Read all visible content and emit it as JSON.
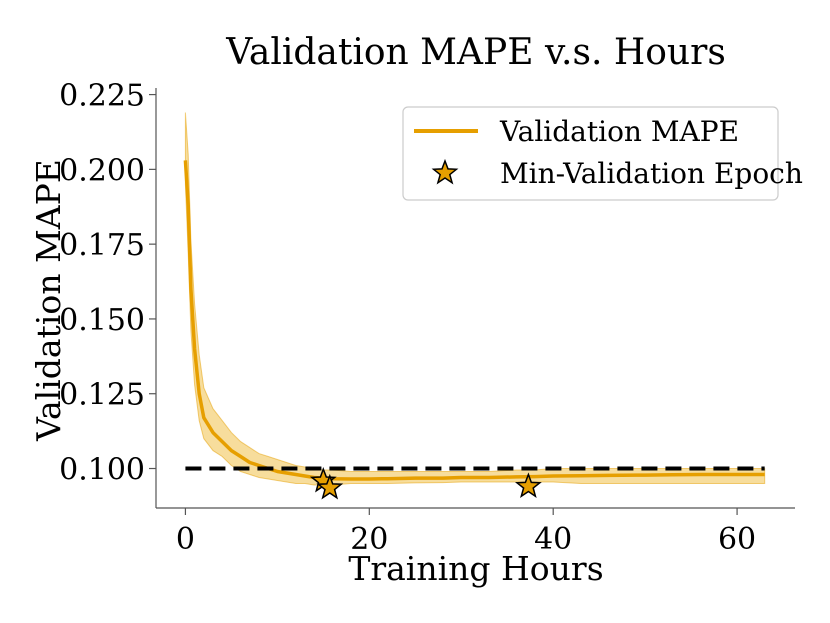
{
  "chart_data": {
    "type": "line",
    "title": "Validation MAPE v.s. Hours",
    "xlabel": "Training Hours",
    "ylabel": "Validation MAPE",
    "xlim": [
      -3.2,
      66.3
    ],
    "ylim": [
      0.0868,
      0.2272
    ],
    "xticks": [
      0,
      20,
      40,
      60
    ],
    "xtick_labels": [
      "0",
      "20",
      "40",
      "60"
    ],
    "yticks": [
      0.1,
      0.125,
      0.15,
      0.175,
      0.2,
      0.225
    ],
    "ytick_labels": [
      "0.100",
      "0.125",
      "0.150",
      "0.175",
      "0.200",
      "0.225"
    ],
    "grid": false,
    "legend_position": "top-right",
    "colors": {
      "series": "#E69F00",
      "band": "#F2C75A",
      "reference": "#000000",
      "star_edge": "#000000"
    },
    "series": [
      {
        "name": "Validation MAPE",
        "x": [
          0,
          0.3,
          0.6,
          1,
          1.5,
          2,
          3,
          4,
          5,
          6,
          7,
          8,
          9,
          10,
          11,
          12,
          13,
          14,
          15,
          16,
          18,
          20,
          22,
          25,
          28,
          30,
          33,
          36,
          38,
          40,
          43,
          46,
          50,
          53,
          56,
          60,
          63
        ],
        "mean": [
          0.203,
          0.188,
          0.16,
          0.14,
          0.125,
          0.117,
          0.112,
          0.109,
          0.106,
          0.104,
          0.102,
          0.101,
          0.1,
          0.099,
          0.0985,
          0.098,
          0.0975,
          0.097,
          0.0968,
          0.0966,
          0.0965,
          0.0965,
          0.0966,
          0.0968,
          0.0968,
          0.097,
          0.097,
          0.0972,
          0.0973,
          0.0975,
          0.0976,
          0.0977,
          0.0978,
          0.0979,
          0.098,
          0.098,
          0.098
        ],
        "lower": [
          0.195,
          0.172,
          0.146,
          0.128,
          0.116,
          0.11,
          0.106,
          0.104,
          0.101,
          0.099,
          0.098,
          0.097,
          0.0965,
          0.096,
          0.0955,
          0.095,
          0.095,
          0.0945,
          0.0945,
          0.0945,
          0.095,
          0.095,
          0.095,
          0.0952,
          0.0953,
          0.0955,
          0.0955,
          0.0955,
          0.0955,
          0.0955,
          0.095,
          0.095,
          0.095,
          0.095,
          0.095,
          0.095,
          0.095
        ],
        "upper": [
          0.219,
          0.205,
          0.176,
          0.155,
          0.138,
          0.127,
          0.12,
          0.116,
          0.112,
          0.109,
          0.107,
          0.105,
          0.104,
          0.103,
          0.102,
          0.101,
          0.1005,
          0.1,
          0.0995,
          0.0995,
          0.099,
          0.099,
          0.099,
          0.099,
          0.099,
          0.099,
          0.099,
          0.0995,
          0.0995,
          0.1,
          0.1,
          0.1,
          0.1,
          0.1,
          0.1,
          0.1,
          0.1
        ]
      },
      {
        "name": "Min-Validation Epoch",
        "x": [
          15,
          15.7,
          37.3
        ],
        "y": [
          0.0958,
          0.0935,
          0.094
        ]
      }
    ],
    "reference_line": {
      "y": 0.1,
      "x_range": [
        0,
        63
      ],
      "style": "dashed"
    }
  }
}
